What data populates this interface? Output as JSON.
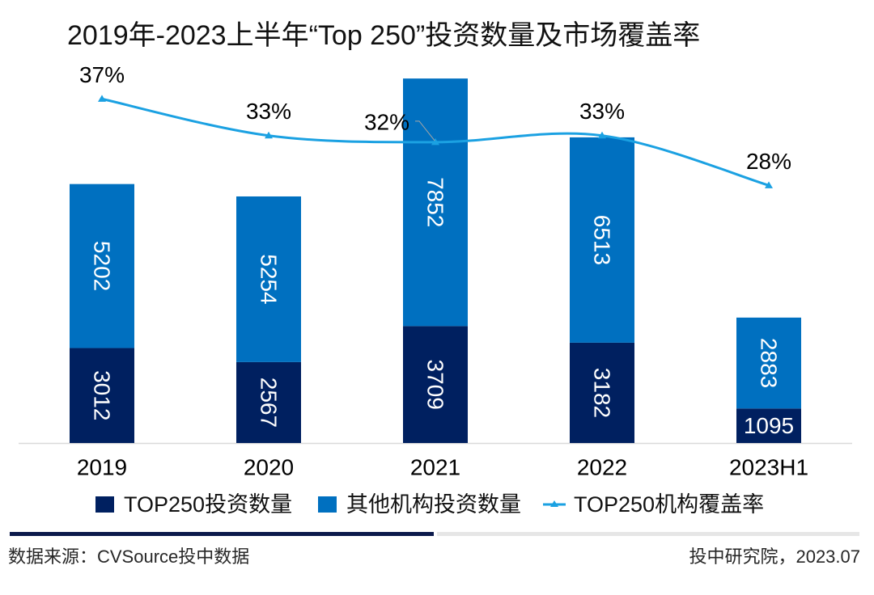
{
  "chart_data": {
    "type": "bar",
    "title": "2019年-2023上半年“Top 250”投资数量及市场覆盖率",
    "categories": [
      "2019",
      "2020",
      "2021",
      "2022",
      "2023H1"
    ],
    "series": [
      {
        "name": "TOP250投资数量",
        "type": "bar",
        "stack": "total",
        "color": "#002060",
        "values": [
          3012,
          2567,
          3709,
          3182,
          1095
        ]
      },
      {
        "name": "其他机构投资数量",
        "type": "bar",
        "stack": "total",
        "color": "#0070c0",
        "values": [
          5202,
          5254,
          7852,
          6513,
          2883
        ]
      },
      {
        "name": "TOP250机构覆盖率",
        "type": "line",
        "axis": "secondary",
        "smooth": true,
        "marker": "triangle",
        "color": "#1ba1e2",
        "values": [
          36.7,
          32.8,
          32.1,
          32.8,
          27.5
        ],
        "labels": [
          "37%",
          "33%",
          "32%",
          "33%",
          "28%"
        ]
      }
    ],
    "xlabel": "",
    "ylabel": "",
    "ylim": [
      0,
      12000
    ],
    "y2lim": [
      0,
      40
    ],
    "y_axes_visible": false,
    "grid": false,
    "legend": "bottom",
    "label_color": "#ffffff",
    "axis_color": "#d9d9d9",
    "leader_line_color": "#a6a6a6"
  },
  "footer": {
    "source": "数据来源：CVSource投中数据",
    "credit": "投中研究院，2023.07",
    "accent_color": "#0b1a4b"
  }
}
